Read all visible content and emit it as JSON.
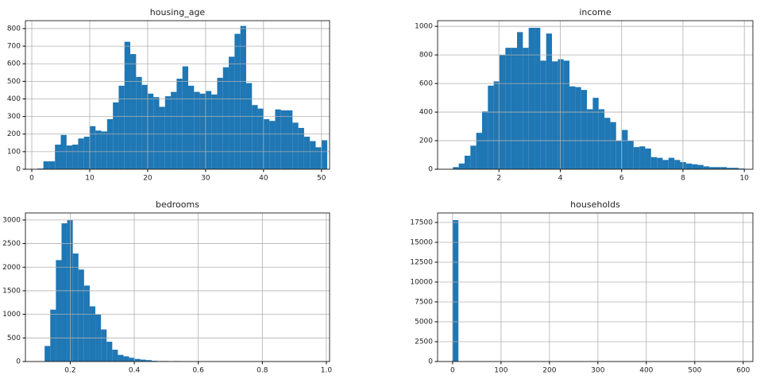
{
  "chart_data": [
    {
      "type": "histogram",
      "title": "housing_age",
      "color": "#1f77b4",
      "grid": true,
      "bins": [
        1,
        2,
        3,
        4,
        5,
        6,
        7,
        8,
        9,
        10,
        11,
        12,
        13,
        14,
        15,
        16,
        17,
        18,
        19,
        20,
        21,
        22,
        23,
        24,
        25,
        26,
        27,
        28,
        29,
        30,
        31,
        32,
        33,
        34,
        35,
        36,
        37,
        38,
        39,
        40,
        41,
        42,
        43,
        44,
        45,
        46,
        47,
        48,
        49,
        50,
        51
      ],
      "values": [
        4,
        45,
        45,
        140,
        195,
        135,
        140,
        175,
        185,
        245,
        220,
        215,
        285,
        380,
        475,
        725,
        655,
        525,
        480,
        430,
        410,
        355,
        415,
        440,
        515,
        585,
        475,
        440,
        430,
        445,
        425,
        520,
        580,
        640,
        770,
        815,
        490,
        365,
        345,
        285,
        275,
        340,
        335,
        335,
        265,
        235,
        185,
        160,
        125,
        165
      ],
      "xlim": [
        -1.1,
        51.4
      ],
      "ylim": [
        0,
        845
      ],
      "xticks": [
        0,
        10,
        20,
        30,
        40,
        50
      ],
      "yticks": [
        0,
        100,
        200,
        300,
        400,
        500,
        600,
        700,
        800
      ]
    },
    {
      "type": "histogram",
      "title": "income",
      "color": "#1f77b4",
      "grid": true,
      "bins": [
        0.5,
        0.69,
        0.88,
        1.07,
        1.26,
        1.45,
        1.64,
        1.83,
        2.02,
        2.21,
        2.4,
        2.59,
        2.78,
        2.97,
        3.16,
        3.35,
        3.54,
        3.73,
        3.92,
        4.11,
        4.3,
        4.49,
        4.68,
        4.87,
        5.06,
        5.25,
        5.44,
        5.63,
        5.82,
        6.01,
        6.2,
        6.39,
        6.58,
        6.77,
        6.96,
        7.15,
        7.34,
        7.53,
        7.72,
        7.91,
        8.1,
        8.29,
        8.48,
        8.67,
        8.86,
        9.05,
        9.24,
        9.43,
        9.62,
        9.81,
        10.0
      ],
      "values": [
        15,
        40,
        95,
        165,
        255,
        405,
        585,
        615,
        800,
        850,
        850,
        960,
        850,
        990,
        990,
        760,
        950,
        755,
        770,
        760,
        580,
        575,
        555,
        420,
        500,
        420,
        360,
        330,
        200,
        275,
        200,
        155,
        160,
        145,
        85,
        80,
        65,
        80,
        65,
        50,
        40,
        35,
        30,
        20,
        15,
        15,
        15,
        10,
        10,
        5
      ],
      "xlim": [
        0.0,
        10.28
      ],
      "ylim": [
        0,
        1040
      ],
      "xticks": [
        2,
        4,
        6,
        8,
        10
      ],
      "yticks": [
        0,
        200,
        400,
        600,
        800,
        1000
      ]
    },
    {
      "type": "histogram",
      "title": "bedrooms",
      "color": "#1f77b4",
      "grid": true,
      "bins": [
        0.12,
        0.1376,
        0.1552,
        0.1728,
        0.1904,
        0.208,
        0.2256,
        0.2432,
        0.2608,
        0.2784,
        0.296,
        0.3136,
        0.3312,
        0.3488,
        0.3664,
        0.384,
        0.4016,
        0.4192,
        0.4368,
        0.4544,
        0.472,
        0.4896,
        0.5072,
        0.5248,
        0.5424,
        0.56,
        0.5776,
        0.5952,
        0.6128,
        0.6304,
        0.648,
        0.6656,
        0.6832,
        0.7008,
        0.7184,
        0.736,
        0.7536,
        0.7712,
        0.7888,
        0.8064,
        0.824,
        0.8416,
        0.8592,
        0.8768,
        0.8944,
        0.912,
        0.9296,
        0.9472,
        0.9648,
        0.9824,
        1.0
      ],
      "values": [
        330,
        1100,
        2150,
        2930,
        3000,
        2290,
        1950,
        1610,
        1170,
        1000,
        680,
        420,
        250,
        140,
        110,
        80,
        55,
        40,
        30,
        15,
        10,
        10,
        5,
        10,
        5,
        3,
        2,
        1,
        1,
        0,
        0,
        0,
        0,
        0,
        0,
        0,
        0,
        0,
        0,
        0,
        0,
        0,
        0,
        0,
        0,
        0,
        0,
        0,
        0,
        1
      ],
      "xlim": [
        0.06,
        1.01
      ],
      "ylim": [
        0,
        3150
      ],
      "xticks": [
        0.2,
        0.4,
        0.6,
        0.8,
        {
          "value": 1,
          "label": "1.0"
        }
      ],
      "yticks": [
        0,
        500,
        1000,
        1500,
        2000,
        2500,
        3000
      ]
    },
    {
      "type": "histogram",
      "title": "households",
      "color": "#1f77b4",
      "grid": true,
      "bins": [
        0,
        12,
        24,
        36,
        48,
        60,
        72,
        84,
        96,
        108,
        120,
        132,
        144,
        156,
        168,
        180,
        192,
        204,
        216,
        228,
        240,
        252,
        264,
        276,
        288,
        300,
        312,
        324,
        336,
        348,
        360,
        372,
        384,
        396,
        408,
        420,
        432,
        444,
        456,
        468,
        480,
        492,
        504,
        516,
        528,
        540,
        552,
        564,
        576,
        588,
        600
      ],
      "values": [
        17800,
        20,
        5,
        2,
        1,
        0,
        0,
        0,
        0,
        0,
        0,
        0,
        0,
        0,
        0,
        0,
        0,
        0,
        0,
        0,
        0,
        0,
        0,
        0,
        0,
        0,
        0,
        0,
        0,
        0,
        0,
        0,
        0,
        0,
        0,
        0,
        0,
        0,
        0,
        0,
        0,
        0,
        0,
        0,
        0,
        0,
        0,
        0,
        0,
        1
      ],
      "xlim": [
        -31,
        620
      ],
      "ylim": [
        0,
        18700
      ],
      "xticks": [
        0,
        100,
        200,
        300,
        400,
        500,
        600
      ],
      "yticks": [
        0,
        2500,
        5000,
        7500,
        10000,
        12500,
        15000,
        17500
      ]
    }
  ]
}
